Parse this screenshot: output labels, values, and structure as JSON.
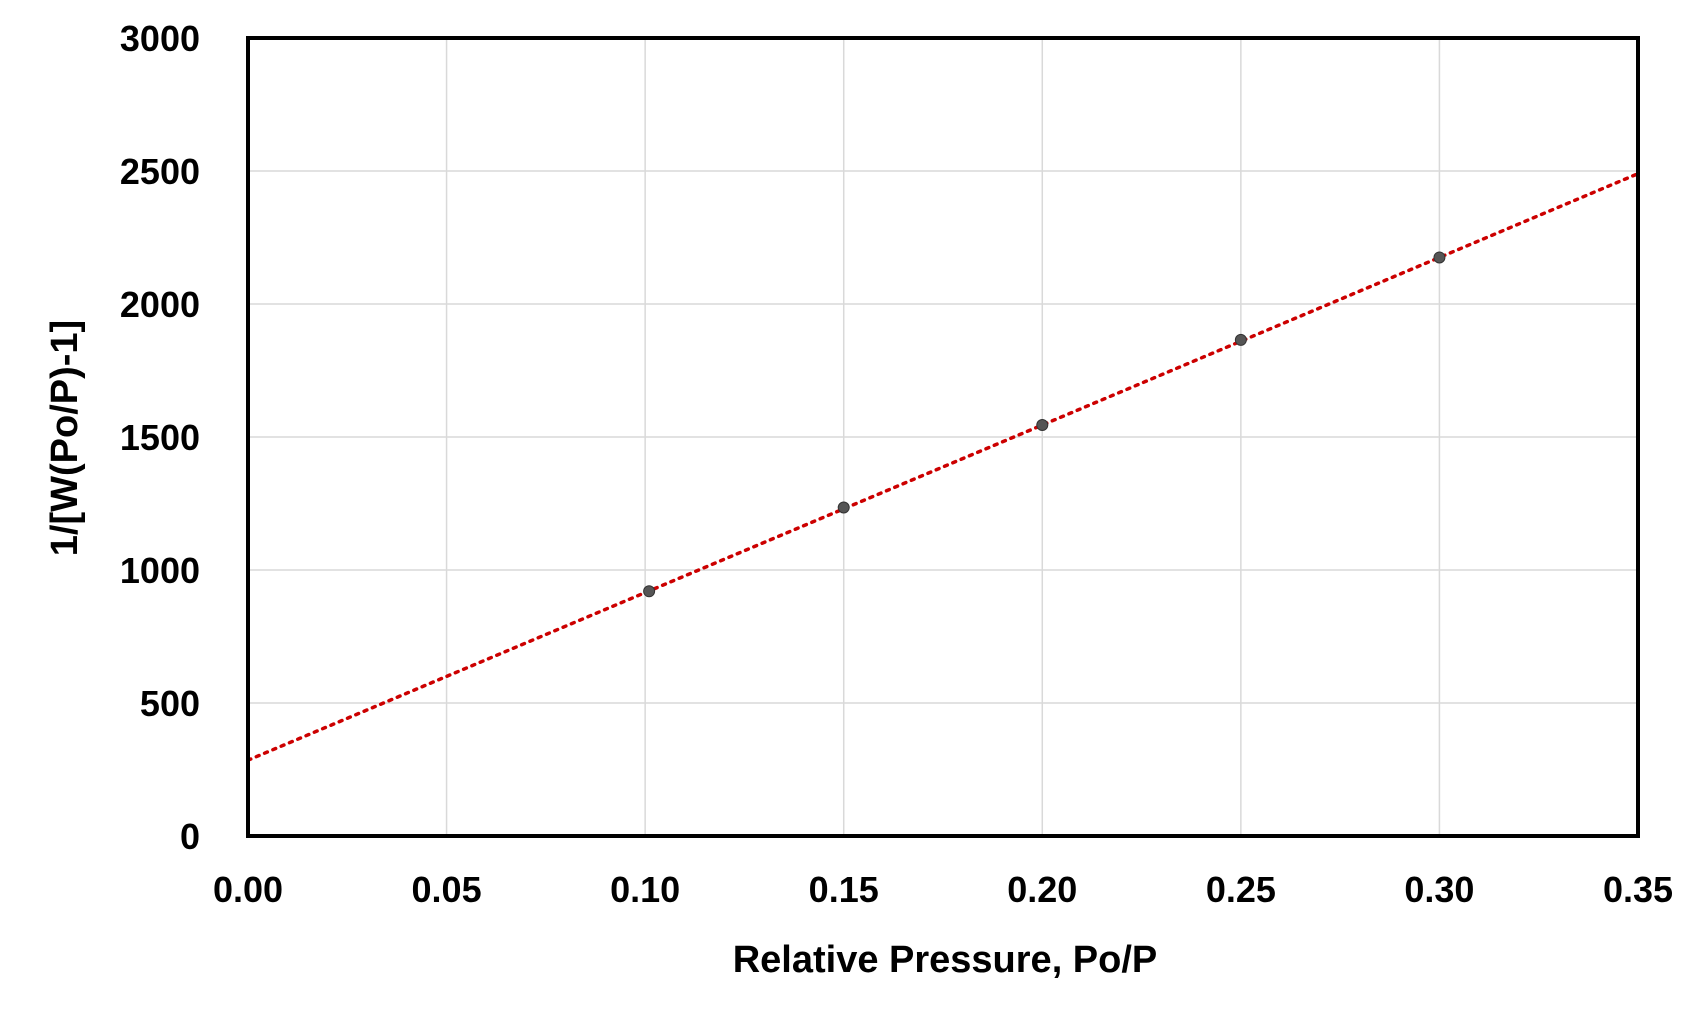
{
  "chart_data": {
    "type": "scatter",
    "title": "",
    "xlabel": "Relative Pressure, Po/P",
    "ylabel": "1/[W(Po/P)-1]",
    "xlim": [
      0.0,
      0.35
    ],
    "ylim": [
      0,
      3000
    ],
    "x_ticks": [
      "0.00",
      "0.05",
      "0.10",
      "0.15",
      "0.20",
      "0.25",
      "0.30",
      "0.35"
    ],
    "y_ticks": [
      "0",
      "500",
      "1000",
      "1500",
      "2000",
      "2500",
      "3000"
    ],
    "grid": true,
    "legend": "none",
    "series": [
      {
        "x": [
          0.101,
          0.15,
          0.2,
          0.25,
          0.3
        ],
        "y": [
          920,
          1235,
          1545,
          1865,
          2175
        ]
      }
    ],
    "trendline": {
      "type": "linear",
      "style": "dotted",
      "x": [
        0.0,
        0.35
      ],
      "y": [
        285,
        2490
      ]
    },
    "colors": {
      "points": "#555555",
      "trendline": "#cc0000",
      "grid": "#d9d9d9",
      "frame": "#000000"
    }
  }
}
